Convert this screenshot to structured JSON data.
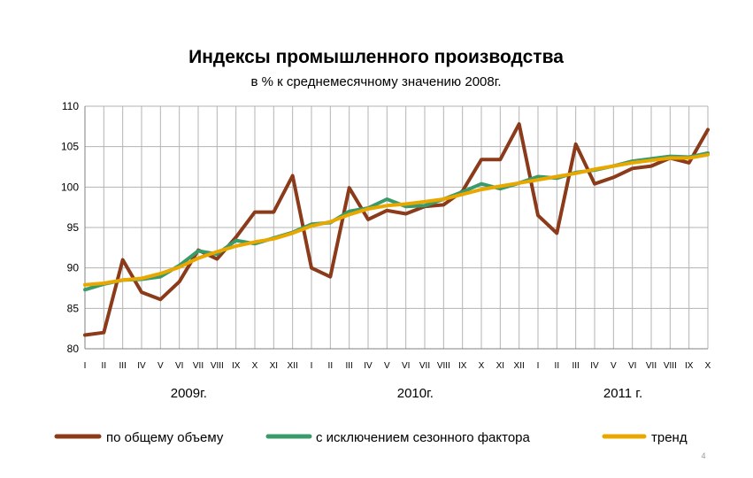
{
  "chart_data": {
    "type": "line",
    "title": "Индексы промышленного производства",
    "subtitle": "в % к среднемесячному значению 2008г.",
    "ylim": [
      80,
      110
    ],
    "y_ticks": [
      "80",
      "85",
      "90",
      "95",
      "100",
      "105",
      "110"
    ],
    "grid": true,
    "categories": [
      "I",
      "II",
      "III",
      "IV",
      "V",
      "VI",
      "VII",
      "VIII",
      "IX",
      "X",
      "XI",
      "XII",
      "I",
      "II",
      "III",
      "IV",
      "V",
      "VI",
      "VII",
      "VIII",
      "IX",
      "X",
      "XI",
      "XII",
      "I",
      "II",
      "III",
      "IV",
      "V",
      "VI",
      "VII",
      "VIII",
      "IX",
      "X"
    ],
    "year_labels": [
      {
        "label": "2009г.",
        "start_index": 0,
        "end_index": 11
      },
      {
        "label": "2010г.",
        "start_index": 12,
        "end_index": 23
      },
      {
        "label": "2011 г.",
        "start_index": 24,
        "end_index": 33
      }
    ],
    "series": [
      {
        "name": "по общему объему",
        "color": "#8B3A1A",
        "values": [
          81.7,
          82.0,
          91.0,
          87.0,
          86.1,
          88.3,
          92.2,
          91.1,
          93.8,
          96.9,
          96.9,
          101.4,
          90.0,
          88.9,
          99.9,
          96.0,
          97.1,
          96.7,
          97.6,
          97.8,
          99.5,
          103.4,
          103.4,
          107.8,
          96.5,
          94.3,
          105.3,
          100.4,
          101.2,
          102.3,
          102.6,
          103.6,
          103.0,
          107.1
        ]
      },
      {
        "name": "с исключением сезонного фактора",
        "color": "#3A9A6A",
        "values": [
          87.3,
          88.0,
          88.5,
          88.6,
          88.9,
          90.3,
          92.1,
          91.7,
          93.4,
          93.0,
          93.7,
          94.4,
          95.4,
          95.6,
          97.0,
          97.4,
          98.5,
          97.6,
          97.7,
          98.5,
          99.4,
          100.4,
          99.8,
          100.5,
          101.3,
          101.1,
          101.8,
          102.1,
          102.6,
          103.2,
          103.5,
          103.8,
          103.7,
          104.2
        ]
      },
      {
        "name": "тренд",
        "color": "#E8A800",
        "values": [
          87.9,
          88.1,
          88.5,
          88.7,
          89.3,
          90.1,
          91.2,
          92.0,
          92.7,
          93.2,
          93.6,
          94.3,
          95.2,
          95.7,
          96.6,
          97.3,
          97.7,
          97.9,
          98.2,
          98.5,
          99.1,
          99.7,
          100.1,
          100.5,
          100.9,
          101.3,
          101.7,
          102.2,
          102.6,
          103.0,
          103.3,
          103.6,
          103.6,
          104.0
        ]
      }
    ],
    "legend_position": "bottom"
  },
  "page_number": "4"
}
